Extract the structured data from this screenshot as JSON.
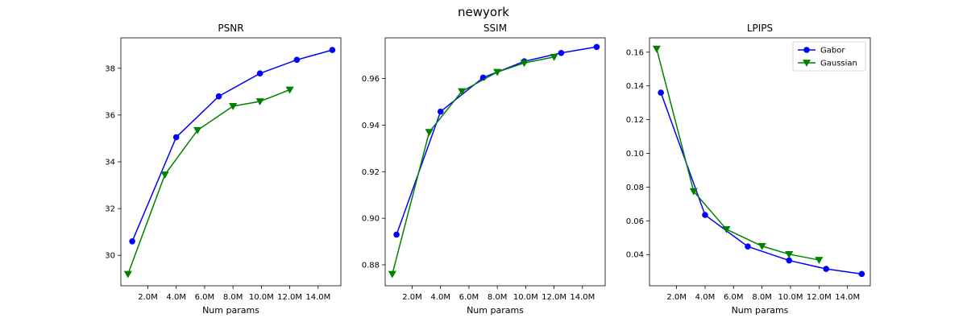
{
  "figure": {
    "suptitle": "newyork",
    "colors": {
      "Gabor": "#0000ff",
      "Gaussian": "#008000"
    }
  },
  "chart_data": [
    {
      "type": "line",
      "title": "PSNR",
      "xlabel": "Num params",
      "ylabel": "",
      "xlim": [
        0.1,
        15.6
      ],
      "ylim": [
        28.7,
        39.3
      ],
      "xticks": [
        2,
        4,
        6,
        8,
        10,
        12,
        14
      ],
      "xtick_labels": [
        "2.0M",
        "4.0M",
        "6.0M",
        "8.0M",
        "10.0M",
        "12.0M",
        "14.0M"
      ],
      "yticks": [
        30,
        32,
        34,
        36,
        38
      ],
      "ytick_labels": [
        "30",
        "32",
        "34",
        "36",
        "38"
      ],
      "grid": false,
      "series": [
        {
          "name": "Gabor",
          "marker": "circle",
          "x": [
            0.9,
            4.0,
            7.0,
            9.9,
            12.5,
            15.0
          ],
          "y": [
            30.6,
            35.05,
            36.8,
            37.78,
            38.36,
            38.78
          ]
        },
        {
          "name": "Gaussian",
          "marker": "triangle-down",
          "x": [
            0.6,
            3.2,
            5.5,
            8.0,
            9.9,
            12.0
          ],
          "y": [
            29.2,
            33.45,
            35.35,
            36.38,
            36.58,
            37.08
          ]
        }
      ]
    },
    {
      "type": "line",
      "title": "SSIM",
      "xlabel": "Num params",
      "ylabel": "",
      "xlim": [
        0.1,
        15.6
      ],
      "ylim": [
        0.871,
        0.9775
      ],
      "xticks": [
        2,
        4,
        6,
        8,
        10,
        12,
        14
      ],
      "xtick_labels": [
        "2.0M",
        "4.0M",
        "6.0M",
        "8.0M",
        "10.0M",
        "12.0M",
        "14.0M"
      ],
      "yticks": [
        0.88,
        0.9,
        0.92,
        0.94,
        0.96
      ],
      "ytick_labels": [
        "0.88",
        "0.90",
        "0.92",
        "0.94",
        "0.96"
      ],
      "grid": false,
      "series": [
        {
          "name": "Gabor",
          "marker": "circle",
          "x": [
            0.9,
            4.0,
            7.0,
            9.9,
            12.5,
            15.0
          ],
          "y": [
            0.893,
            0.9458,
            0.9604,
            0.9674,
            0.971,
            0.9736
          ]
        },
        {
          "name": "Gaussian",
          "marker": "triangle-down",
          "x": [
            0.6,
            3.2,
            5.5,
            8.0,
            9.9,
            12.0
          ],
          "y": [
            0.876,
            0.937,
            0.9545,
            0.9628,
            0.9667,
            0.9693
          ]
        }
      ]
    },
    {
      "type": "line",
      "title": "LPIPS",
      "xlabel": "Num params",
      "ylabel": "",
      "xlim": [
        0.1,
        15.6
      ],
      "ylim": [
        0.0215,
        0.1685
      ],
      "xticks": [
        2,
        4,
        6,
        8,
        10,
        12,
        14
      ],
      "xtick_labels": [
        "2.0M",
        "4.0M",
        "6.0M",
        "8.0M",
        "10.0M",
        "12.0M",
        "14.0M"
      ],
      "yticks": [
        0.04,
        0.06,
        0.08,
        0.1,
        0.12,
        0.14,
        0.16
      ],
      "ytick_labels": [
        "0.04",
        "0.06",
        "0.08",
        "0.10",
        "0.12",
        "0.14",
        "0.16"
      ],
      "grid": false,
      "legend": "top-right",
      "series": [
        {
          "name": "Gabor",
          "marker": "circle",
          "x": [
            0.9,
            4.0,
            7.0,
            9.9,
            12.5,
            15.0
          ],
          "y": [
            0.136,
            0.0635,
            0.0448,
            0.0365,
            0.0315,
            0.0285
          ]
        },
        {
          "name": "Gaussian",
          "marker": "triangle-down",
          "x": [
            0.6,
            3.2,
            5.5,
            8.0,
            9.9,
            12.0
          ],
          "y": [
            0.162,
            0.0775,
            0.055,
            0.045,
            0.0402,
            0.0368
          ]
        }
      ]
    }
  ]
}
